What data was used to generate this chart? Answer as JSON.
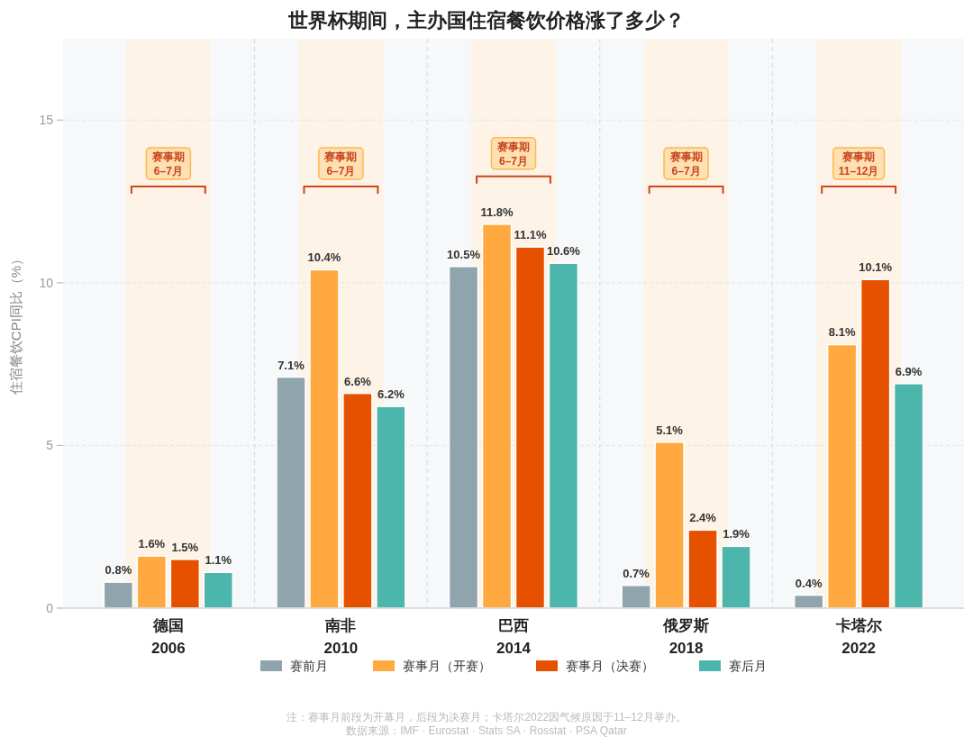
{
  "chart_data": {
    "type": "bar",
    "title": "世界杯期间，主办国住宿餐饮价格涨了多少？",
    "ylabel": "住宿餐饮CPI同比（%）",
    "categories": [
      "德国\n2006",
      "南非\n2010",
      "巴西\n2014",
      "俄罗斯\n2018",
      "卡塔尔\n2022"
    ],
    "series": [
      {
        "name": "赛前月",
        "color": "#90a4ae",
        "values": [
          0.8,
          7.1,
          10.5,
          0.7,
          0.4
        ],
        "value_labels": [
          "0.8%",
          "7.1%",
          "10.5%",
          "0.7%",
          "0.4%"
        ]
      },
      {
        "name": "赛事月（开赛）",
        "color": "#ffa940",
        "values": [
          1.6,
          10.4,
          11.8,
          5.1,
          8.1
        ],
        "value_labels": [
          "1.6%",
          "10.4%",
          "11.8%",
          "5.1%",
          "8.1%"
        ]
      },
      {
        "name": "赛事月（决赛）",
        "color": "#e65100",
        "values": [
          1.5,
          6.6,
          11.1,
          2.4,
          10.1
        ],
        "value_labels": [
          "1.5%",
          "6.6%",
          "11.1%",
          "2.4%",
          "10.1%"
        ]
      },
      {
        "name": "赛后月",
        "color": "#4db6ac",
        "values": [
          1.1,
          6.2,
          10.6,
          1.9,
          6.9
        ],
        "value_labels": [
          "1.1%",
          "6.2%",
          "10.6%",
          "1.9%",
          "6.9%"
        ]
      }
    ],
    "ylim": [
      0,
      17.5
    ],
    "yticks": [
      0,
      5,
      10,
      15
    ],
    "grid": true,
    "legend": "bottom",
    "bands": [
      {
        "axis": "x",
        "from": "德国\n2006",
        "to": "德国\n2006",
        "label": "赛事期\n6–7月",
        "color": "#fdf3e6"
      },
      {
        "axis": "x",
        "from": "南非\n2010",
        "to": "南非\n2010",
        "label": "赛事期\n6–7月",
        "color": "#fdf3e6"
      },
      {
        "axis": "x",
        "from": "巴西\n2014",
        "to": "巴西\n2014",
        "label": "赛事期\n6–7月",
        "color": "#fdf3e6"
      },
      {
        "axis": "x",
        "from": "俄罗斯\n2018",
        "to": "俄罗斯\n2018",
        "label": "赛事期\n6–7月",
        "color": "#fdf3e6"
      },
      {
        "axis": "x",
        "from": "卡塔尔\n2022",
        "to": "卡塔尔\n2022",
        "label": "赛事期\n11–12月",
        "color": "#fdf3e6"
      }
    ],
    "annotations": [
      "注：赛事月前段为开幕月，后段为决赛月；卡塔尔2022因气候原因于11–12月举办。",
      "数据来源：IMF · Eurostat · Stats SA · Rosstat · PSA Qatar"
    ]
  }
}
